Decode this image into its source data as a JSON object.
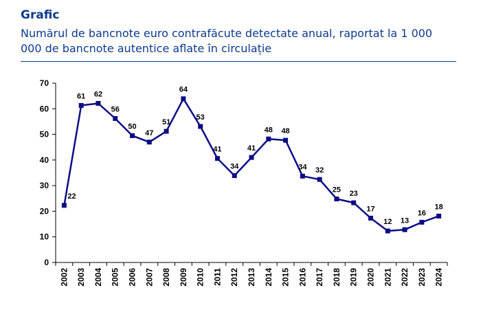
{
  "header": {
    "kicker": "Grafic",
    "title": "Numărul de bancnote euro contrafăcute detectate anual, raportat la 1 000 000 de bancnote autentice aflate în circulație"
  },
  "colors": {
    "series": "#0b0c85",
    "header": "#0b3a8c",
    "axis": "#000000"
  },
  "chart_data": {
    "type": "line",
    "x": [
      "2002",
      "2003",
      "2004",
      "2005",
      "2006",
      "2007",
      "2008",
      "2009",
      "2010",
      "2011",
      "2012",
      "2013",
      "2014",
      "2015",
      "2016",
      "2017",
      "2018",
      "2019",
      "2020",
      "2021",
      "2022",
      "2023",
      "2024"
    ],
    "series": [
      {
        "values": [
          22.3,
          61.3,
          62.1,
          56.2,
          49.5,
          47.0,
          51.2,
          63.9,
          53.1,
          40.6,
          33.9,
          41.0,
          48.2,
          47.7,
          33.7,
          32.4,
          24.8,
          23.3,
          17.3,
          12.3,
          12.8,
          15.7,
          18.1
        ]
      }
    ],
    "data_labels": [
      "22",
      "61",
      "62",
      "56",
      "50",
      "47",
      "51",
      "64",
      "53",
      "41",
      "34",
      "41",
      "48",
      "48",
      "34",
      "32",
      "25",
      "23",
      "17",
      "12",
      "13",
      "16",
      "18"
    ],
    "y_ticks": [
      "0",
      "10",
      "20",
      "30",
      "40",
      "50",
      "60",
      "70"
    ],
    "ylim": [
      0,
      70
    ],
    "grid": false,
    "legend": "none",
    "marker": "square"
  }
}
